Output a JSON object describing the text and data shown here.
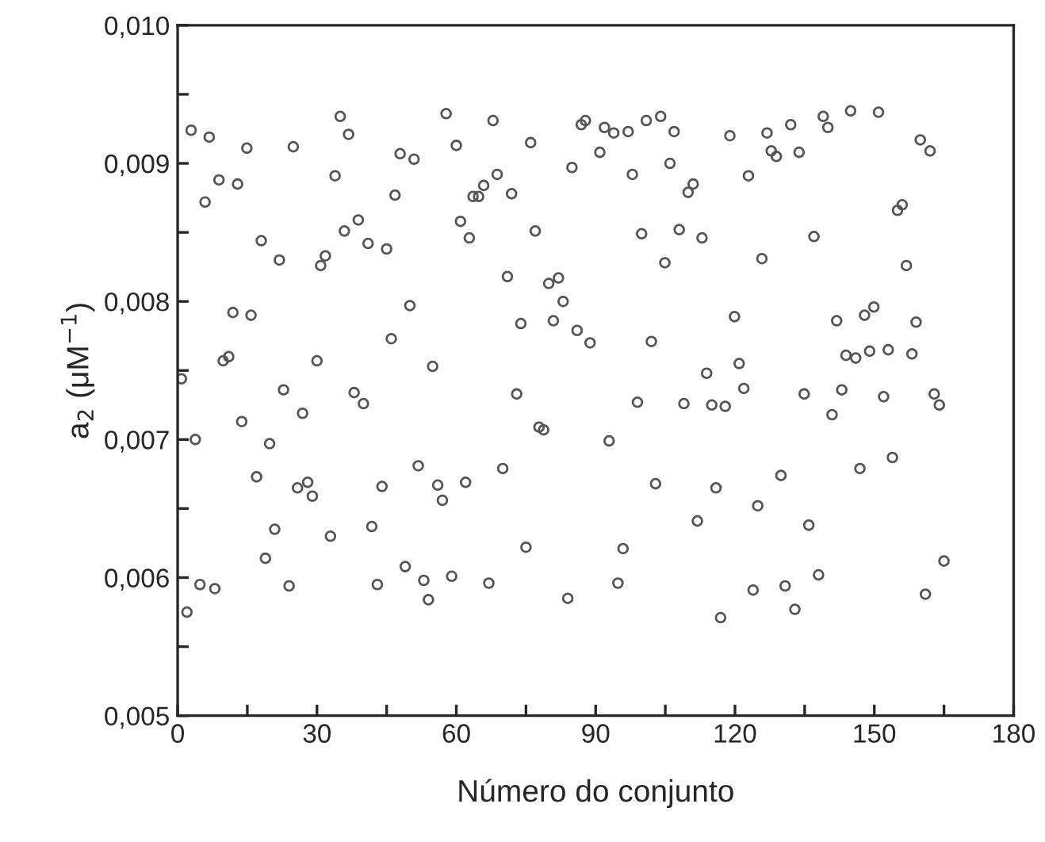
{
  "chart_data": {
    "type": "scatter",
    "xlabel": "Número do conjunto",
    "ylabel": "a$_{2}$ (μM$^{−1}$)",
    "x": [
      0.8,
      2.0,
      2.9,
      3.8,
      4.8,
      5.9,
      6.8,
      8.0,
      8.9,
      9.8,
      11.0,
      11.9,
      12.9,
      13.8,
      14.9,
      15.8,
      17.0,
      18.0,
      18.9,
      19.8,
      20.9,
      21.9,
      22.8,
      24.0,
      24.9,
      25.8,
      26.9,
      28.0,
      29.0,
      30.0,
      30.8,
      31.8,
      32.9,
      33.9,
      35.0,
      35.9,
      36.8,
      38.0,
      38.9,
      40.0,
      41.0,
      41.8,
      43.0,
      44.0,
      45.0,
      46.0,
      46.8,
      47.9,
      49.0,
      50.0,
      50.9,
      51.8,
      53.0,
      54.0,
      54.9,
      56.0,
      57.0,
      57.8,
      59.0,
      60.0,
      60.9,
      62.0,
      62.8,
      63.6,
      64.8,
      65.9,
      67.0,
      67.9,
      68.8,
      70.0,
      71.0,
      71.9,
      73.0,
      73.9,
      75.0,
      76.0,
      77.0,
      77.8,
      78.8,
      79.9,
      80.9,
      82.0,
      83.0,
      84.0,
      84.9,
      86.0,
      86.9,
      87.8,
      88.8,
      90.9,
      91.9,
      92.9,
      93.9,
      94.8,
      95.9,
      97.0,
      97.9,
      99.0,
      99.9,
      100.9,
      102.0,
      102.9,
      104.0,
      104.9,
      106.0,
      106.9,
      108.0,
      109.0,
      109.9,
      111.0,
      111.9,
      112.9,
      113.9,
      115.0,
      115.9,
      116.9,
      117.9,
      118.9,
      119.9,
      120.9,
      121.9,
      122.9,
      123.9,
      124.9,
      125.8,
      126.9,
      127.8,
      128.9,
      129.9,
      130.8,
      132.0,
      132.9,
      133.8,
      134.9,
      135.9,
      137.0,
      138.0,
      139.0,
      140.0,
      140.9,
      141.9,
      143.0,
      143.9,
      144.9,
      146.0,
      146.9,
      147.9,
      149.0,
      149.9,
      150.9,
      152.0,
      153.0,
      153.9,
      155.0,
      156.0,
      156.9,
      158.1,
      159.0,
      159.9,
      161.0,
      162.0,
      162.9,
      164.0,
      165.0
    ],
    "values": [
      0.00744,
      0.00575,
      0.00924,
      0.007,
      0.00595,
      0.00872,
      0.00919,
      0.00592,
      0.00888,
      0.00757,
      0.0076,
      0.00792,
      0.00885,
      0.00713,
      0.00911,
      0.0079,
      0.00673,
      0.00844,
      0.00614,
      0.00697,
      0.00635,
      0.0083,
      0.00736,
      0.00594,
      0.00912,
      0.00665,
      0.00719,
      0.00669,
      0.00659,
      0.00757,
      0.00826,
      0.00833,
      0.0063,
      0.00891,
      0.00934,
      0.00851,
      0.00921,
      0.00734,
      0.00859,
      0.00726,
      0.00842,
      0.00637,
      0.00595,
      0.00666,
      0.00838,
      0.00773,
      0.00877,
      0.00907,
      0.00608,
      0.00797,
      0.00903,
      0.00681,
      0.00598,
      0.00584,
      0.00753,
      0.00667,
      0.00656,
      0.00936,
      0.00601,
      0.00913,
      0.00858,
      0.00669,
      0.00846,
      0.00876,
      0.00876,
      0.00884,
      0.00596,
      0.00931,
      0.00892,
      0.00679,
      0.00818,
      0.00878,
      0.00733,
      0.00784,
      0.00622,
      0.00915,
      0.00851,
      0.00709,
      0.00707,
      0.00813,
      0.00786,
      0.00817,
      0.008,
      0.00585,
      0.00897,
      0.00779,
      0.00928,
      0.00931,
      0.0077,
      0.00908,
      0.00926,
      0.00699,
      0.00922,
      0.00596,
      0.00621,
      0.00923,
      0.00892,
      0.00727,
      0.00849,
      0.00931,
      0.00771,
      0.00668,
      0.00934,
      0.00828,
      0.009,
      0.00923,
      0.00852,
      0.00726,
      0.00879,
      0.00885,
      0.00641,
      0.00846,
      0.00748,
      0.00725,
      0.00665,
      0.00571,
      0.00724,
      0.0092,
      0.00789,
      0.00755,
      0.00737,
      0.00891,
      0.00591,
      0.00652,
      0.00831,
      0.00922,
      0.00909,
      0.00905,
      0.00674,
      0.00594,
      0.00928,
      0.00577,
      0.00908,
      0.00733,
      0.00638,
      0.00847,
      0.00602,
      0.00934,
      0.00926,
      0.00718,
      0.00786,
      0.00736,
      0.00761,
      0.00938,
      0.00759,
      0.00679,
      0.0079,
      0.00764,
      0.00796,
      0.00937,
      0.00731,
      0.00765,
      0.00687,
      0.00866,
      0.0087,
      0.00826,
      0.00762,
      0.00785,
      0.00917,
      0.00588,
      0.00909,
      0.00733,
      0.00725,
      0.00612
    ],
    "color": "#555555",
    "marker": "circle",
    "xlim": [
      0,
      180
    ],
    "xticks": [
      0,
      {
        "value": 15,
        "label": null
      },
      30,
      {
        "value": 45,
        "label": null
      },
      60,
      {
        "value": 75,
        "label": null
      },
      90,
      {
        "value": 105,
        "label": null
      },
      120,
      {
        "value": 135,
        "label": null
      },
      150,
      {
        "value": 165,
        "label": null
      },
      180
    ],
    "ylim": [
      0.005,
      0.01
    ],
    "yticks": [
      {
        "value": 0.005,
        "label": "0,005"
      },
      {
        "value": 0.0055,
        "label": null
      },
      {
        "value": 0.006,
        "label": "0,006"
      },
      {
        "value": 0.0065,
        "label": null
      },
      {
        "value": 0.007,
        "label": "0,007"
      },
      {
        "value": 0.0075,
        "label": null
      },
      {
        "value": 0.008,
        "label": "0,008"
      },
      {
        "value": 0.0085,
        "label": null
      },
      {
        "value": 0.009,
        "label": "0,009"
      },
      {
        "value": 0.0095,
        "label": null
      },
      {
        "value": 0.01,
        "label": "0,010"
      }
    ],
    "grid": false
  }
}
